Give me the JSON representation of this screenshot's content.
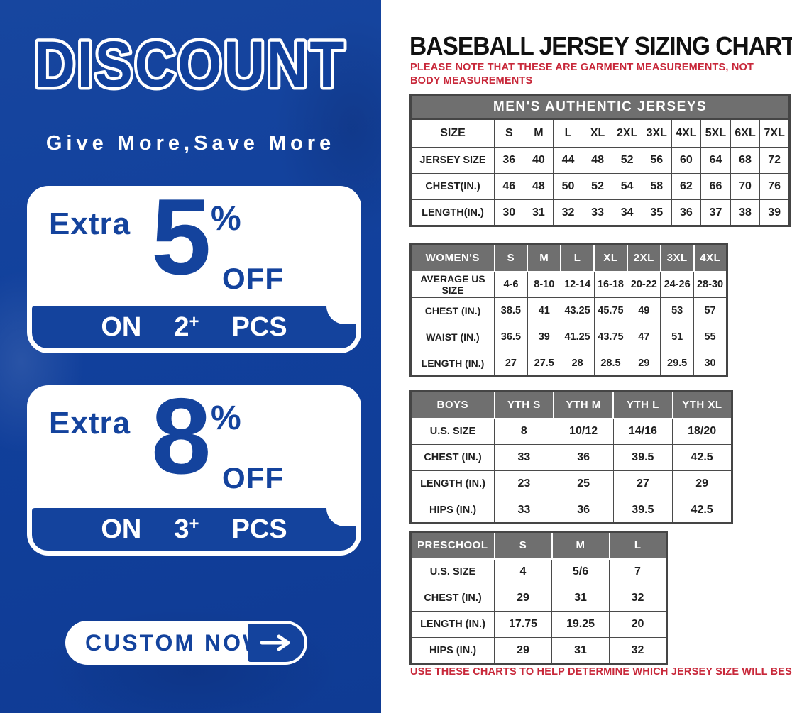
{
  "left_panel": {
    "title": "DISCOUNT",
    "tagline": "Give More,Save More",
    "background_blue": "#11409c",
    "text_blue": "#14439d",
    "offers": [
      {
        "prefix": "Extra",
        "percent": "5",
        "percent_sign": "%",
        "off_label": "OFF",
        "on_label": "ON",
        "quantity": "2",
        "plus": "+",
        "pcs_label": "PCS"
      },
      {
        "prefix": "Extra",
        "percent": "8",
        "percent_sign": "%",
        "off_label": "OFF",
        "on_label": "ON",
        "quantity": "3",
        "plus": "+",
        "pcs_label": "PCS"
      }
    ],
    "cta": {
      "label": "CUSTOM NOW",
      "icon": "arrow-right"
    }
  },
  "right_panel": {
    "title": "BASEBALL JERSEY SIZING CHART",
    "note_top": "PLEASE NOTE THAT THESE ARE GARMENT MEASUREMENTS, NOT BODY MEASUREMENTS",
    "note_bottom": "USE THESE CHARTS TO HELP DETERMINE WHICH JERSEY SIZE WILL BEST FIT YOU.",
    "accent_red": "#c8283a",
    "header_gray": "#6f6f6f",
    "tables": [
      {
        "id": "mens",
        "banner": "MEN'S AUTHENTIC JERSEYS",
        "header": [
          "SIZE",
          "S",
          "M",
          "L",
          "XL",
          "2XL",
          "3XL",
          "4XL",
          "5XL",
          "6XL",
          "7XL"
        ],
        "rows": [
          [
            "JERSEY SIZE",
            "36",
            "40",
            "44",
            "48",
            "52",
            "56",
            "60",
            "64",
            "68",
            "72"
          ],
          [
            "CHEST(IN.)",
            "46",
            "48",
            "50",
            "52",
            "54",
            "58",
            "62",
            "66",
            "70",
            "76"
          ],
          [
            "LENGTH(IN.)",
            "30",
            "31",
            "32",
            "33",
            "34",
            "35",
            "36",
            "37",
            "38",
            "39"
          ]
        ]
      },
      {
        "id": "womens",
        "header": [
          "WOMEN'S",
          "S",
          "M",
          "L",
          "XL",
          "2XL",
          "3XL",
          "4XL"
        ],
        "rows": [
          [
            "AVERAGE US SIZE",
            "4-6",
            "8-10",
            "12-14",
            "16-18",
            "20-22",
            "24-26",
            "28-30"
          ],
          [
            "CHEST (IN.)",
            "38.5",
            "41",
            "43.25",
            "45.75",
            "49",
            "53",
            "57"
          ],
          [
            "WAIST (IN.)",
            "36.5",
            "39",
            "41.25",
            "43.75",
            "47",
            "51",
            "55"
          ],
          [
            "LENGTH (IN.)",
            "27",
            "27.5",
            "28",
            "28.5",
            "29",
            "29.5",
            "30"
          ]
        ]
      },
      {
        "id": "boys",
        "header": [
          "BOYS",
          "YTH S",
          "YTH M",
          "YTH L",
          "YTH XL"
        ],
        "rows": [
          [
            "U.S. SIZE",
            "8",
            "10/12",
            "14/16",
            "18/20"
          ],
          [
            "CHEST (IN.)",
            "33",
            "36",
            "39.5",
            "42.5"
          ],
          [
            "LENGTH (IN.)",
            "23",
            "25",
            "27",
            "29"
          ],
          [
            "HIPS (IN.)",
            "33",
            "36",
            "39.5",
            "42.5"
          ]
        ]
      },
      {
        "id": "preschool",
        "header": [
          "PRESCHOOL",
          "S",
          "M",
          "L"
        ],
        "rows": [
          [
            "U.S. SIZE",
            "4",
            "5/6",
            "7"
          ],
          [
            "CHEST (IN.)",
            "29",
            "31",
            "32"
          ],
          [
            "LENGTH (IN.)",
            "17.75",
            "19.25",
            "20"
          ],
          [
            "HIPS (IN.)",
            "29",
            "31",
            "32"
          ]
        ]
      }
    ]
  }
}
